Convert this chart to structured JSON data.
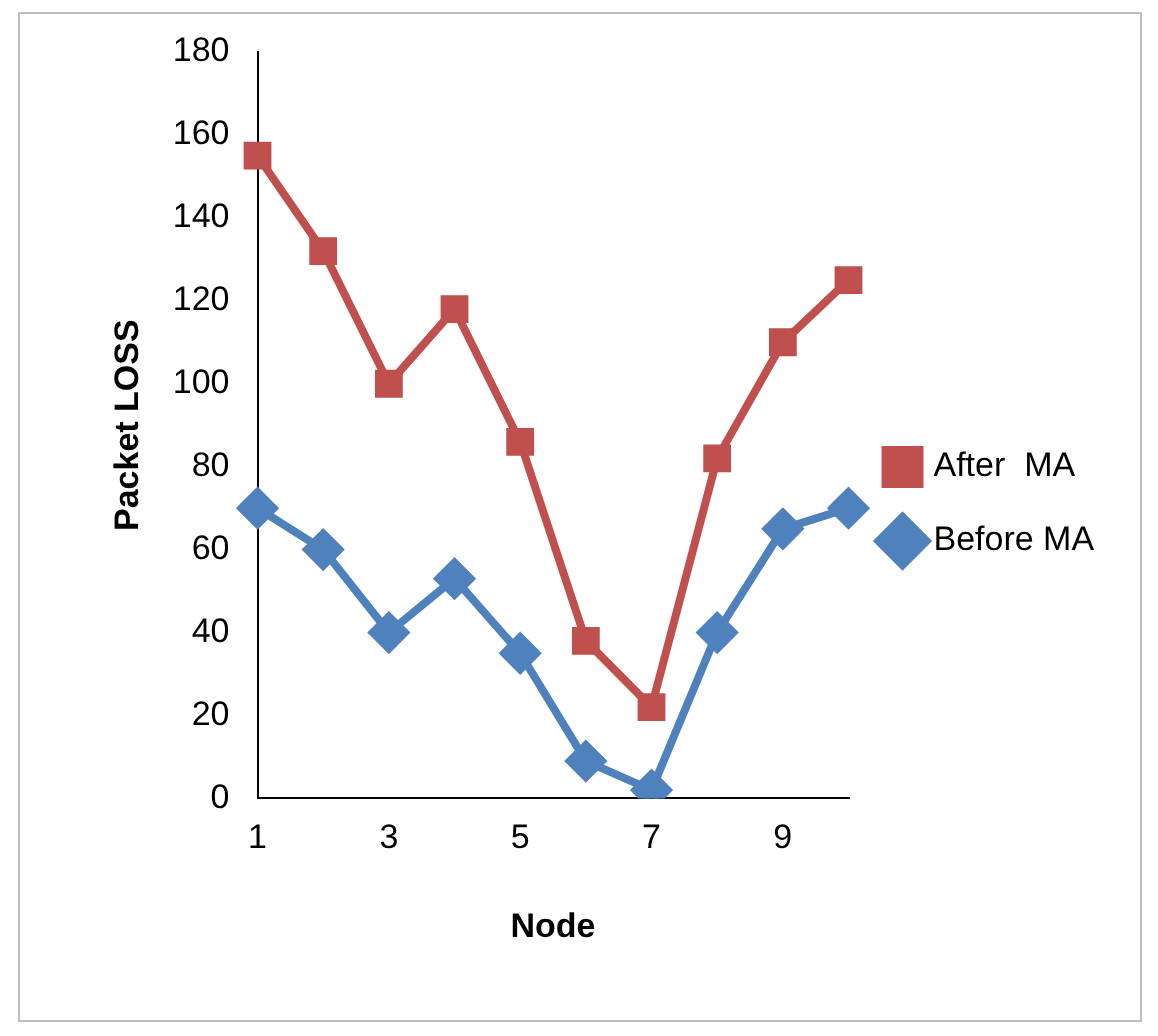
{
  "chart_data": {
    "type": "line",
    "xlabel": "Node",
    "ylabel": "Packet LOSS",
    "categories": [
      "1",
      null,
      "3",
      null,
      "5",
      null,
      "7",
      null,
      "9",
      null
    ],
    "series": [
      {
        "name": "After  MA",
        "color": "#c0504d",
        "marker": "square",
        "values": [
          155,
          132,
          100,
          118,
          86,
          38,
          22,
          82,
          110,
          125
        ]
      },
      {
        "name": "Before MA",
        "color": "#4f81bd",
        "marker": "diamond",
        "values": [
          70,
          60,
          40,
          53,
          35,
          9,
          2,
          40,
          65,
          70
        ]
      }
    ],
    "ylim": [
      0,
      180
    ],
    "yticks": [
      0,
      20,
      40,
      60,
      80,
      100,
      120,
      140,
      160,
      180
    ],
    "grid": false,
    "legend": "right",
    "line_style": "solid"
  }
}
